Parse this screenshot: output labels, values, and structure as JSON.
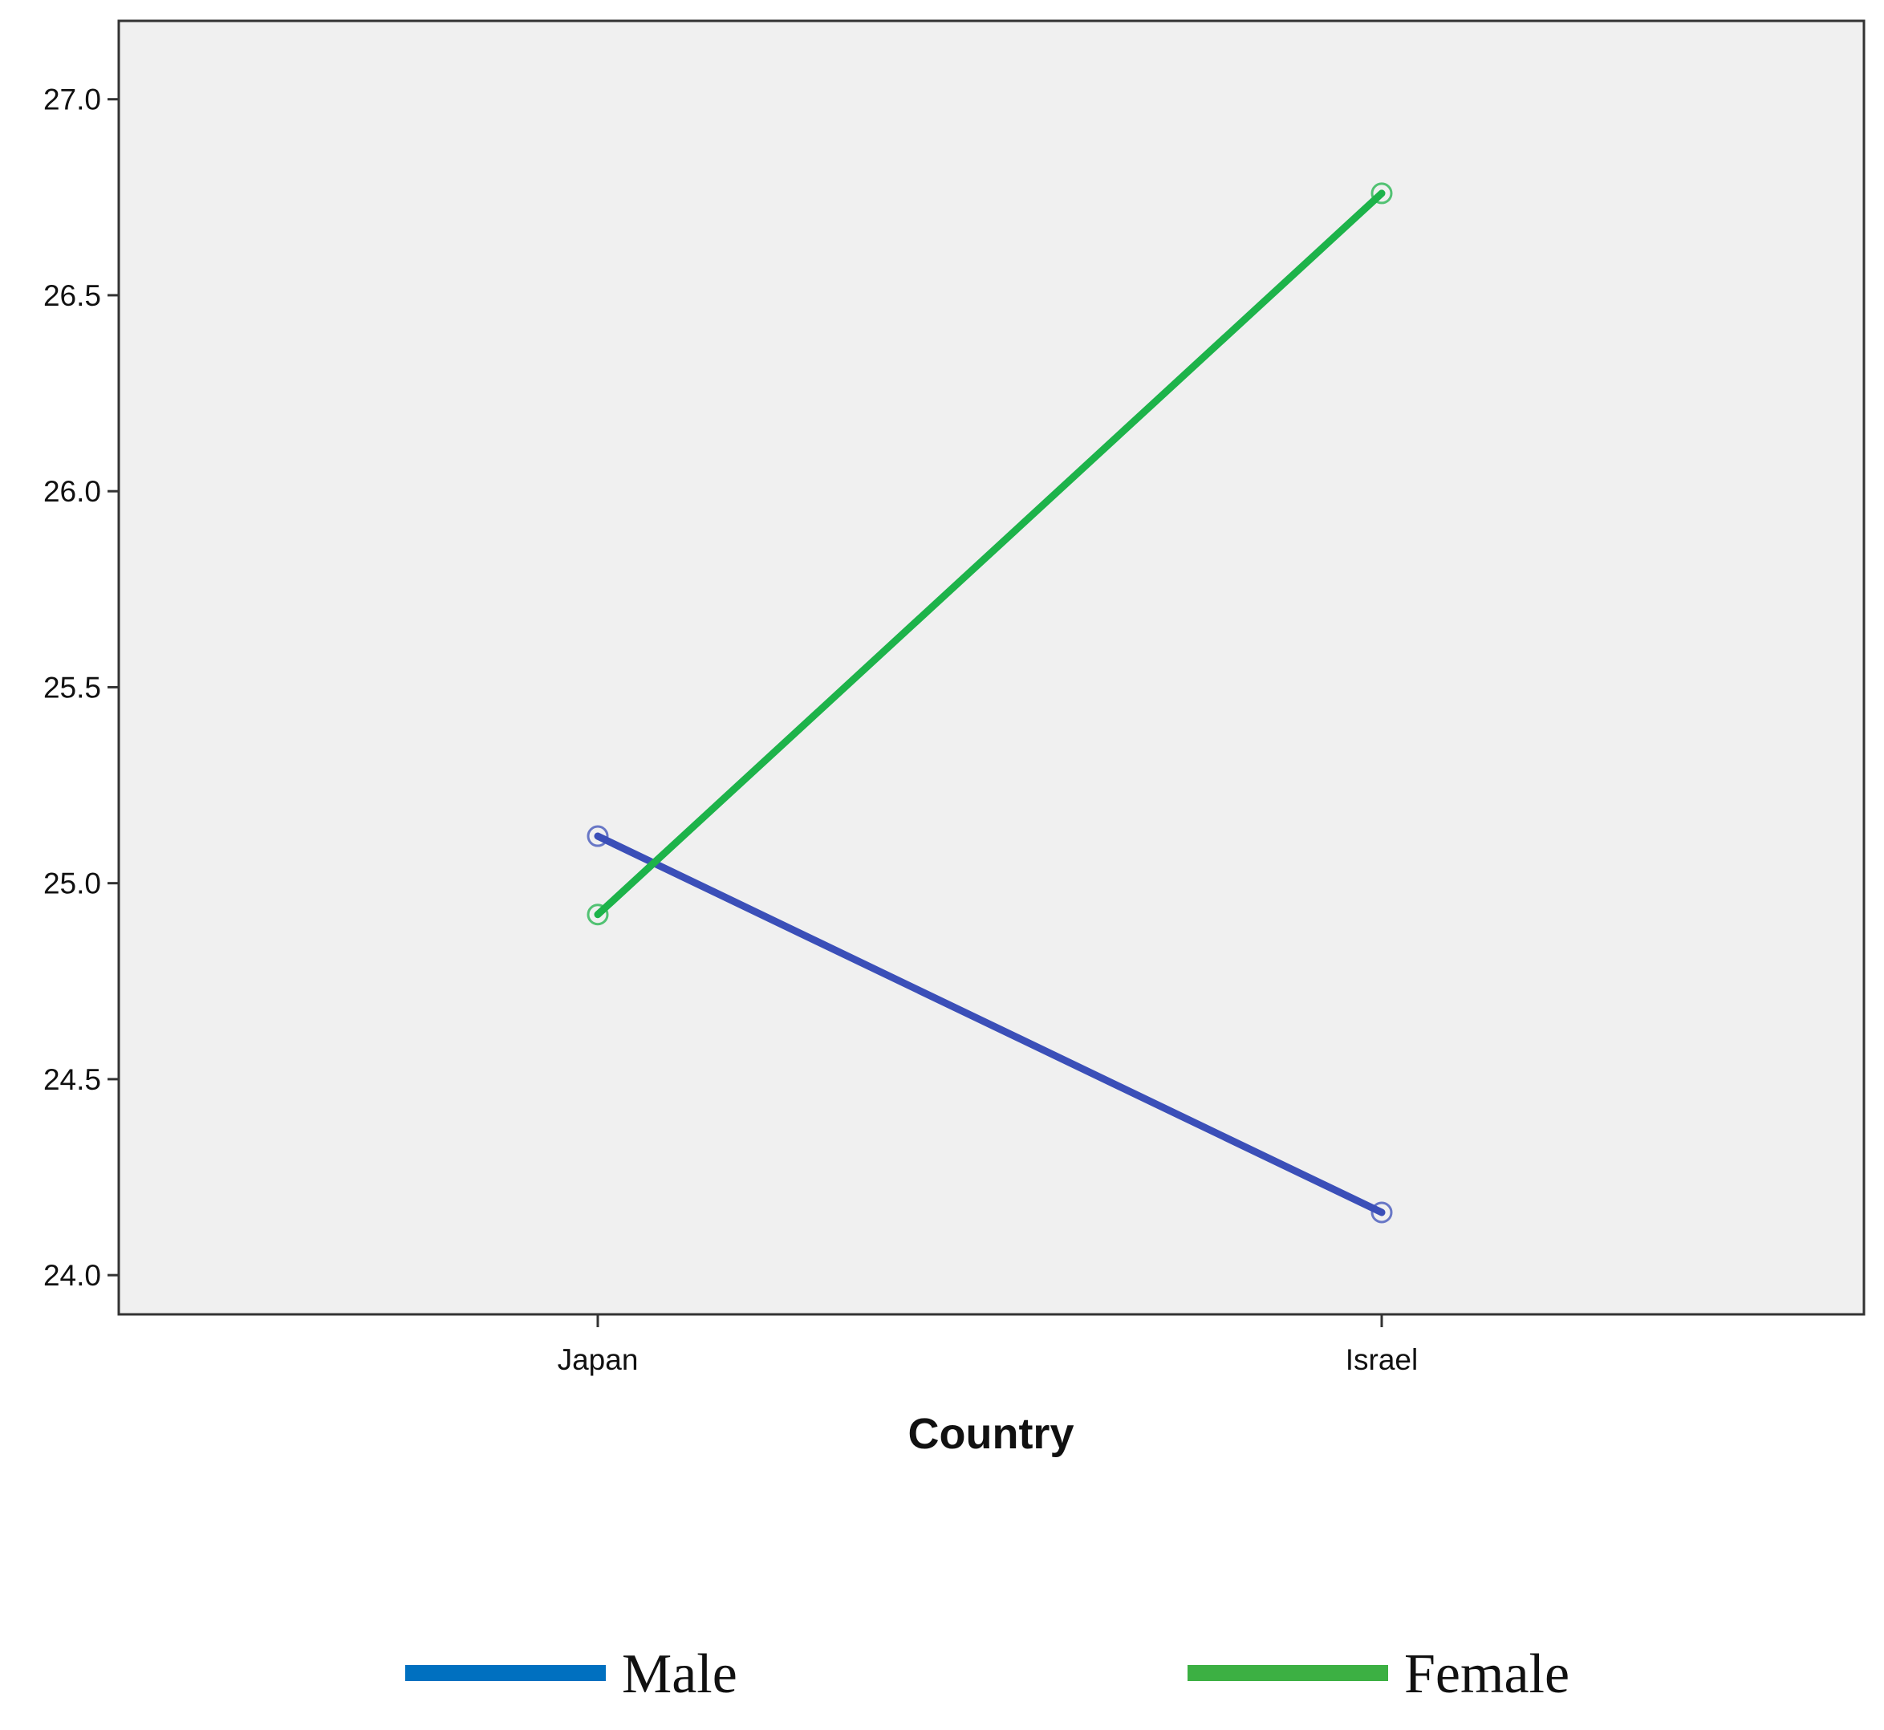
{
  "chart_data": {
    "type": "line",
    "title": "",
    "xlabel": "Country",
    "ylabel": "",
    "categories": [
      "Japan",
      "Israel"
    ],
    "ylim": [
      23.9,
      27.2
    ],
    "yticks": [
      24.0,
      24.5,
      25.0,
      25.5,
      26.0,
      26.5,
      27.0
    ],
    "ytick_labels": [
      "24.0",
      "24.5",
      "25.0",
      "25.5",
      "26.0",
      "26.5",
      "27.0"
    ],
    "grid": false,
    "background_color": "#f0f0f0",
    "series": [
      {
        "name": "Male",
        "values": [
          25.12,
          24.16
        ],
        "color": "#3b4fb8",
        "legend_color": "#0070c0"
      },
      {
        "name": "Female",
        "values": [
          24.92,
          26.76
        ],
        "color": "#1db34a",
        "legend_color": "#3cb043"
      }
    ],
    "legend_position": "bottom"
  }
}
